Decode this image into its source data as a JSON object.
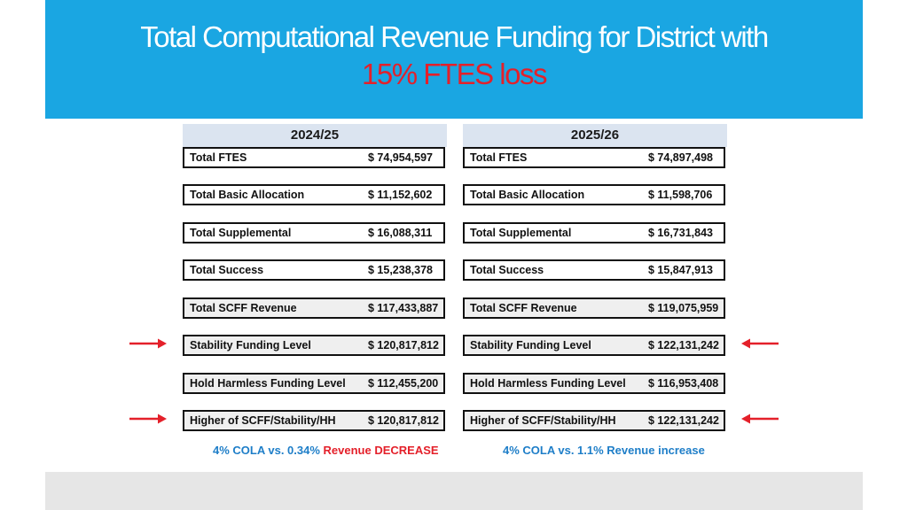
{
  "title": {
    "line1": "Total Computational Revenue Funding for District with",
    "line2": "15% FTES loss"
  },
  "columns": [
    {
      "year": "2024/25",
      "rows": [
        {
          "label": "Total FTES",
          "value": "$  74,954,597"
        },
        {
          "label": "Total Basic Allocation",
          "value": "$  11,152,602"
        },
        {
          "label": "Total Supplemental",
          "value": "$  16,088,311"
        },
        {
          "label": "Total Success",
          "value": "$  15,238,378"
        },
        {
          "label": "Total SCFF Revenue",
          "value": "$ 117,433,887"
        },
        {
          "label": "Stability Funding Level",
          "value": "$ 120,817,812"
        },
        {
          "label": "Hold Harmless Funding Level",
          "value": "$ 112,455,200"
        },
        {
          "label": "Higher of SCFF/Stability/HH",
          "value": "$ 120,817,812"
        }
      ],
      "note": {
        "part1": "4% COLA vs. 0.34% ",
        "part2": "Revenue DECREASE"
      }
    },
    {
      "year": "2025/26",
      "rows": [
        {
          "label": "Total FTES",
          "value": "$  74,897,498"
        },
        {
          "label": "Total Basic Allocation",
          "value": "$  11,598,706"
        },
        {
          "label": "Total Supplemental",
          "value": "$  16,731,843"
        },
        {
          "label": "Total Success",
          "value": "$  15,847,913"
        },
        {
          "label": "Total SCFF Revenue",
          "value": "$ 119,075,959"
        },
        {
          "label": "Stability Funding Level",
          "value": "$ 122,131,242"
        },
        {
          "label": "Hold Harmless Funding Level",
          "value": "$ 116,953,408"
        },
        {
          "label": "Higher of SCFF/Stability/HH",
          "value": "$ 122,131,242"
        }
      ],
      "note": {
        "part1": "4% COLA vs. 1.1% Revenue increase"
      }
    }
  ],
  "colors": {
    "header_bg": "#1aa6e2",
    "title_white": "#ffffff",
    "title_red": "#e4202a",
    "column_header_bg": "#dbe4f0",
    "note_blue": "#1e7ec8",
    "arrow_red": "#e4202a"
  },
  "icons": [
    "arrow-right-icon",
    "arrow-left-icon"
  ]
}
